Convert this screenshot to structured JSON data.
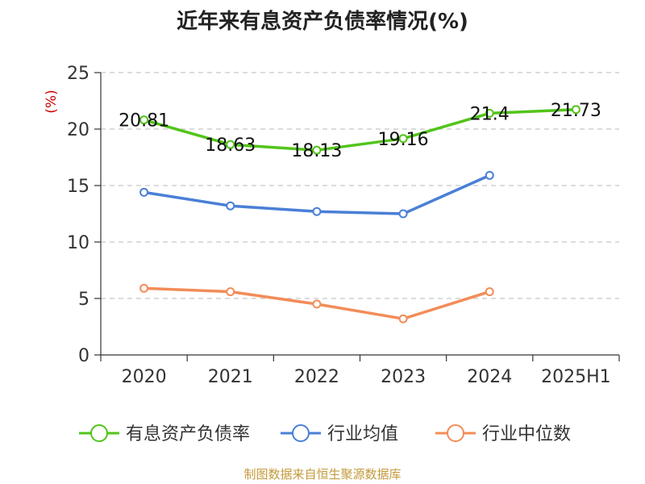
{
  "chart_data": {
    "type": "line",
    "title": "近年来有息资产负债率情况(%)",
    "ylabel": "(%)",
    "xlabel": "",
    "ylim": [
      0,
      25
    ],
    "yticks": [
      0,
      5,
      10,
      15,
      20,
      25
    ],
    "categories": [
      "2020",
      "2021",
      "2022",
      "2023",
      "2024",
      "2025H1"
    ],
    "grid": true,
    "legend_position": "bottom",
    "series": [
      {
        "name": "有息资产负债率",
        "color": "#52c41a",
        "values": [
          20.81,
          18.63,
          18.13,
          19.16,
          21.4,
          21.73
        ],
        "labels": [
          "20.81",
          "18.63",
          "18.13",
          "19.16",
          "21.4",
          "21.73"
        ]
      },
      {
        "name": "行业均值",
        "color": "#4a7fd6",
        "values": [
          14.4,
          13.2,
          12.7,
          12.5,
          15.9,
          null
        ],
        "labels": null
      },
      {
        "name": "行业中位数",
        "color": "#f28c58",
        "values": [
          5.9,
          5.6,
          4.5,
          3.2,
          5.6,
          null
        ],
        "labels": null
      }
    ]
  },
  "source": "制图数据来自恒生聚源数据库"
}
